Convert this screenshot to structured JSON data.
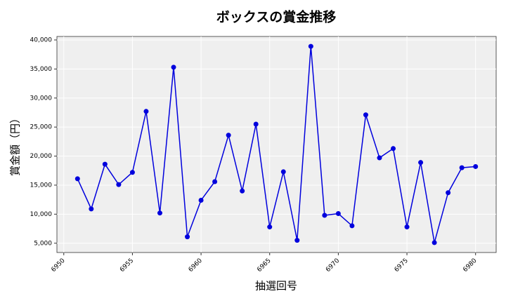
{
  "chart_data": {
    "type": "line",
    "title": "ボックスの賞金推移",
    "x_label": "抽選回号",
    "y_label": "賞金額（円）",
    "x": [
      6951,
      6952,
      6953,
      6954,
      6955,
      6956,
      6957,
      6958,
      6959,
      6960,
      6961,
      6962,
      6963,
      6964,
      6965,
      6966,
      6967,
      6968,
      6969,
      6970,
      6971,
      6972,
      6973,
      6974,
      6975,
      6976,
      6977,
      6978,
      6979,
      6980
    ],
    "series": [
      {
        "name": "ボックス",
        "color": "#0000dd",
        "values": [
          16100,
          10900,
          18600,
          15100,
          17200,
          27700,
          10200,
          35300,
          6100,
          12400,
          15600,
          23600,
          14000,
          25500,
          7800,
          17300,
          5500,
          38900,
          9800,
          10100,
          8000,
          27100,
          19700,
          21300,
          7800,
          18900,
          5100,
          13700,
          18000,
          18200
        ]
      }
    ],
    "xlim": [
      6949.5,
      6981.5
    ],
    "xticks": [
      6950,
      6955,
      6960,
      6965,
      6970,
      6975,
      6980
    ],
    "ylim": [
      3400,
      40600
    ],
    "yticks": [
      {
        "value": 5000,
        "label": "5,000"
      },
      {
        "value": 10000,
        "label": "10,000"
      },
      {
        "value": 15000,
        "label": "15,000"
      },
      {
        "value": 20000,
        "label": "20,000"
      },
      {
        "value": 25000,
        "label": "25,000"
      },
      {
        "value": 30000,
        "label": "30,000"
      },
      {
        "value": 35000,
        "label": "35,000"
      },
      {
        "value": 40000,
        "label": "40,000"
      }
    ],
    "grid": true
  }
}
